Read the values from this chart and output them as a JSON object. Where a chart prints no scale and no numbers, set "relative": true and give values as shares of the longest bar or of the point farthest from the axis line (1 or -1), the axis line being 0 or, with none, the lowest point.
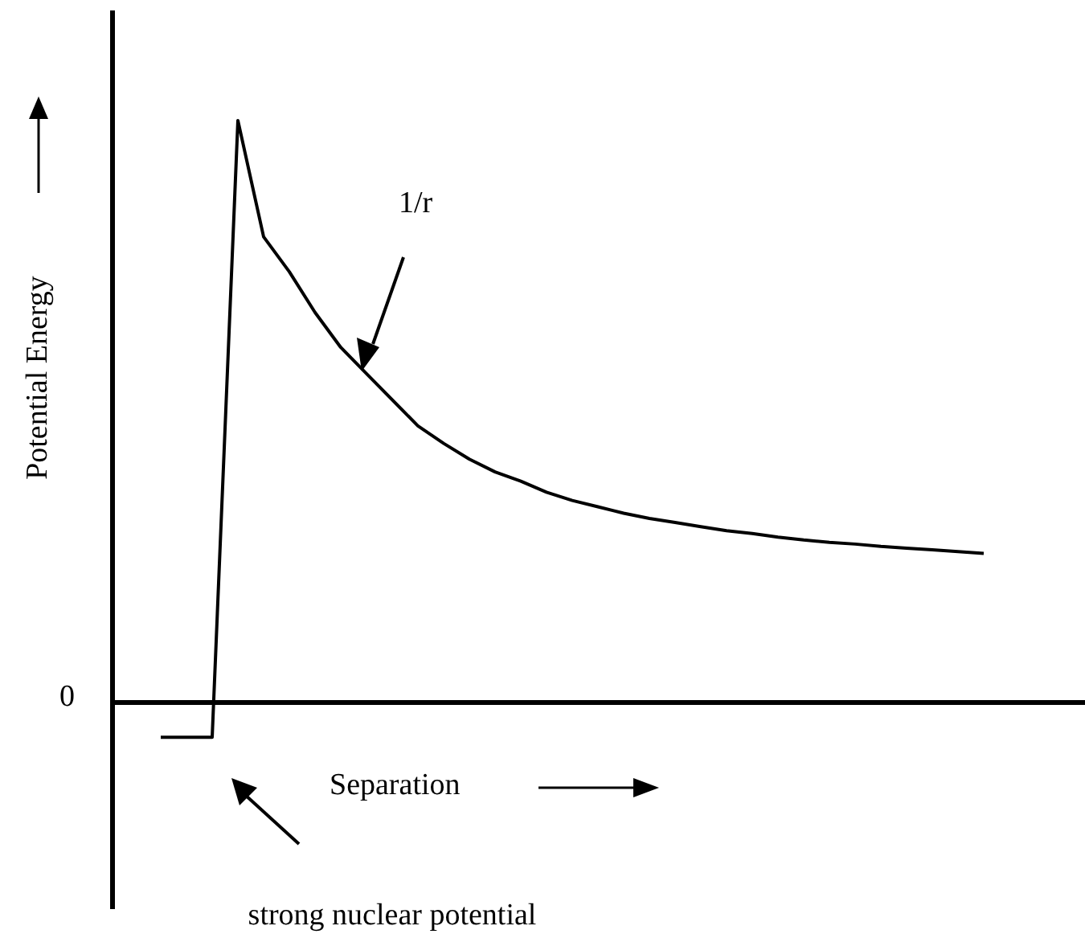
{
  "chart_data": {
    "type": "line",
    "relative": true,
    "xlabel": "Separation",
    "ylabel": "Potential Energy",
    "marker": "none",
    "line_style": "solid",
    "grid": false,
    "legend": false,
    "annotations": [
      "0",
      "1/r",
      "strong nuclear potential"
    ],
    "categories": [
      null,
      null,
      null,
      null,
      null,
      null,
      null,
      null,
      null,
      null,
      null,
      null,
      null,
      null,
      null,
      null,
      null,
      null,
      null,
      null,
      null,
      null,
      null,
      null,
      null,
      null,
      null,
      null,
      null,
      null,
      null,
      null,
      null
    ],
    "series": [
      {
        "color": "#000000",
        "values": [
          -0.06,
          -0.06,
          -0.06,
          1.0,
          0.8,
          0.74,
          0.67,
          0.61,
          0.565,
          0.52,
          0.475,
          0.445,
          0.418,
          0.396,
          0.38,
          0.361,
          0.347,
          0.336,
          0.325,
          0.316,
          0.309,
          0.302,
          0.295,
          0.29,
          0.284,
          0.279,
          0.275,
          0.272,
          0.268,
          0.265,
          0.262,
          0.259,
          0.256
        ]
      }
    ]
  }
}
